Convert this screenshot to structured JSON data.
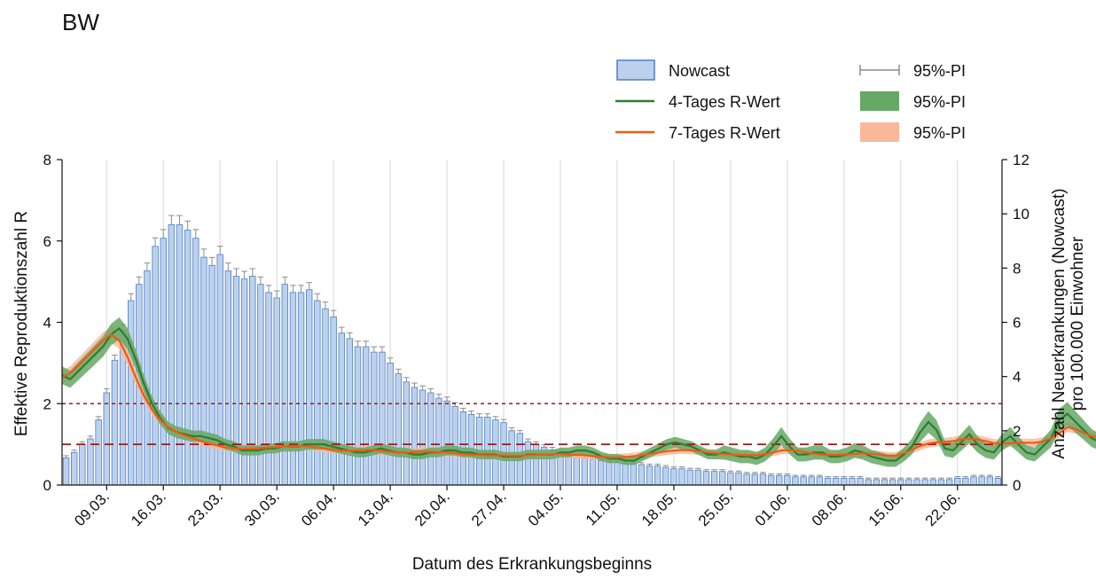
{
  "title": "BW",
  "chart_data": {
    "type": "bar+line",
    "x_tick_labels": [
      "09.03.",
      "16.03.",
      "23.03.",
      "30.03.",
      "06.04.",
      "13.04.",
      "20.04.",
      "27.04.",
      "04.05.",
      "11.05.",
      "18.05.",
      "25.05.",
      "01.06.",
      "08.06.",
      "15.06.",
      "22.06."
    ],
    "first_date": "2020-03-04",
    "last_date": "2020-06-26",
    "xlabel": "Datum des Erkrankungsbeginns",
    "ylabel_left": "Effektive Reproduktionszahl R",
    "ylabel_right_line1": "Anzahl Neuerkrankungen (Nowcast)",
    "ylabel_right_line2": "pro 100.000 Einwohner",
    "ylim_left": [
      0,
      8
    ],
    "yticks_left": [
      "0",
      "2",
      "4",
      "6",
      "8"
    ],
    "ylim_right": [
      0,
      12
    ],
    "yticks_right": [
      "0",
      "2",
      "4",
      "6",
      "8",
      "10",
      "12"
    ],
    "reference_lines_R": [
      1,
      2
    ],
    "grid": "vertical at weekly ticks",
    "legend_position": "top-right",
    "legend": {
      "nowcast": "Nowcast",
      "r4": "4-Tages R-Wert",
      "r7": "7-Tages R-Wert",
      "pi_bars": "95%-PI",
      "pi_r4": "95%-PI",
      "pi_r7": "95%-PI"
    },
    "colors": {
      "bar_fill": "#bcd1ee",
      "bar_stroke": "#4f7fc0",
      "r4_line": "#2e7d32",
      "r4_band": "#66a866",
      "r7_line": "#f05a14",
      "r7_band": "#f9b89a",
      "pi_whisker": "#8c8c8c",
      "ref_line": "#9e1b1b",
      "grid": "#d9d9d9"
    },
    "series": [
      {
        "name": "Nowcast",
        "axis": "right",
        "values": [
          1.0,
          1.2,
          1.5,
          1.7,
          2.4,
          3.4,
          4.6,
          5.7,
          6.8,
          7.4,
          7.9,
          8.8,
          9.1,
          9.6,
          9.6,
          9.4,
          9.1,
          8.4,
          8.1,
          8.5,
          7.9,
          7.7,
          7.6,
          7.7,
          7.4,
          7.1,
          6.9,
          7.4,
          7.1,
          7.1,
          7.2,
          6.8,
          6.5,
          6.2,
          5.6,
          5.4,
          5.1,
          5.1,
          4.9,
          4.9,
          4.5,
          4.1,
          3.8,
          3.6,
          3.5,
          3.4,
          3.2,
          3.1,
          2.9,
          2.7,
          2.6,
          2.5,
          2.5,
          2.4,
          2.3,
          2.0,
          1.9,
          1.6,
          1.5,
          1.4,
          1.3,
          1.2,
          1.1,
          1.0,
          1.0,
          0.95,
          0.9,
          0.85,
          0.85,
          0.8,
          0.8,
          0.75,
          0.7,
          0.7,
          0.65,
          0.6,
          0.6,
          0.55,
          0.55,
          0.5,
          0.5,
          0.5,
          0.45,
          0.45,
          0.4,
          0.4,
          0.4,
          0.35,
          0.35,
          0.35,
          0.3,
          0.3,
          0.3,
          0.3,
          0.25,
          0.25,
          0.25,
          0.25,
          0.25,
          0.2,
          0.2,
          0.2,
          0.2,
          0.2,
          0.2,
          0.2,
          0.2,
          0.2,
          0.2,
          0.2,
          0.25,
          0.25,
          0.3,
          0.3,
          0.3,
          0.25
        ]
      },
      {
        "name": "4-Tages R-Wert",
        "axis": "left",
        "points": [
          [
            0,
            2.7
          ],
          [
            1,
            2.6
          ],
          [
            2,
            2.8
          ],
          [
            3,
            3.0
          ],
          [
            4,
            3.2
          ],
          [
            5,
            3.4
          ],
          [
            6,
            3.7
          ],
          [
            7,
            3.85
          ],
          [
            8,
            3.6
          ],
          [
            9,
            3.1
          ],
          [
            10,
            2.5
          ],
          [
            11,
            2.0
          ],
          [
            12,
            1.65
          ],
          [
            13,
            1.4
          ],
          [
            14,
            1.3
          ],
          [
            15,
            1.25
          ],
          [
            16,
            1.2
          ],
          [
            17,
            1.2
          ],
          [
            18,
            1.15
          ],
          [
            19,
            1.1
          ],
          [
            20,
            1.0
          ],
          [
            21,
            0.95
          ],
          [
            22,
            0.85
          ],
          [
            23,
            0.85
          ],
          [
            24,
            0.85
          ],
          [
            25,
            0.9
          ],
          [
            26,
            0.9
          ],
          [
            27,
            0.95
          ],
          [
            28,
            0.95
          ],
          [
            29,
            0.95
          ],
          [
            30,
            1.0
          ],
          [
            31,
            1.0
          ],
          [
            32,
            1.0
          ],
          [
            33,
            0.95
          ],
          [
            34,
            0.9
          ],
          [
            35,
            0.85
          ],
          [
            36,
            0.8
          ],
          [
            37,
            0.8
          ],
          [
            38,
            0.85
          ],
          [
            39,
            0.9
          ],
          [
            40,
            0.85
          ],
          [
            41,
            0.8
          ],
          [
            42,
            0.8
          ],
          [
            43,
            0.75
          ],
          [
            44,
            0.75
          ],
          [
            45,
            0.8
          ],
          [
            46,
            0.8
          ],
          [
            47,
            0.85
          ],
          [
            48,
            0.85
          ],
          [
            49,
            0.8
          ],
          [
            50,
            0.8
          ],
          [
            51,
            0.75
          ],
          [
            52,
            0.75
          ],
          [
            53,
            0.75
          ],
          [
            54,
            0.7
          ],
          [
            55,
            0.7
          ],
          [
            56,
            0.7
          ],
          [
            57,
            0.75
          ],
          [
            58,
            0.75
          ],
          [
            59,
            0.75
          ],
          [
            60,
            0.75
          ],
          [
            61,
            0.8
          ],
          [
            62,
            0.8
          ],
          [
            63,
            0.85
          ],
          [
            64,
            0.85
          ],
          [
            65,
            0.8
          ],
          [
            66,
            0.7
          ],
          [
            67,
            0.65
          ],
          [
            68,
            0.65
          ],
          [
            69,
            0.6
          ],
          [
            70,
            0.6
          ],
          [
            71,
            0.7
          ],
          [
            72,
            0.8
          ],
          [
            73,
            0.9
          ],
          [
            74,
            1.0
          ],
          [
            75,
            1.05
          ],
          [
            76,
            1.0
          ],
          [
            77,
            0.95
          ],
          [
            78,
            0.85
          ],
          [
            79,
            0.75
          ],
          [
            80,
            0.75
          ],
          [
            81,
            0.8
          ],
          [
            82,
            0.75
          ],
          [
            83,
            0.7
          ],
          [
            84,
            0.7
          ],
          [
            85,
            0.65
          ],
          [
            86,
            0.75
          ],
          [
            87,
            0.95
          ],
          [
            88,
            1.2
          ],
          [
            89,
            0.95
          ],
          [
            90,
            0.75
          ],
          [
            91,
            0.75
          ],
          [
            92,
            0.8
          ],
          [
            93,
            0.8
          ],
          [
            94,
            0.7
          ],
          [
            95,
            0.7
          ],
          [
            96,
            0.75
          ],
          [
            97,
            0.85
          ],
          [
            98,
            0.8
          ],
          [
            99,
            0.7
          ],
          [
            100,
            0.65
          ],
          [
            101,
            0.6
          ],
          [
            102,
            0.6
          ],
          [
            103,
            0.75
          ],
          [
            104,
            0.95
          ],
          [
            105,
            1.3
          ],
          [
            106,
            1.55
          ],
          [
            107,
            1.35
          ],
          [
            108,
            0.9
          ],
          [
            109,
            0.85
          ],
          [
            110,
            1.05
          ],
          [
            111,
            1.25
          ],
          [
            112,
            1.0
          ],
          [
            113,
            0.85
          ],
          [
            114,
            0.8
          ],
          [
            115,
            1.05
          ],
          [
            116,
            1.2
          ],
          [
            117,
            1.0
          ],
          [
            118,
            0.8
          ],
          [
            119,
            0.75
          ],
          [
            120,
            0.95
          ],
          [
            121,
            1.15
          ],
          [
            122,
            1.6
          ],
          [
            123,
            1.75
          ],
          [
            124,
            1.55
          ],
          [
            125,
            1.35
          ],
          [
            126,
            1.15
          ],
          [
            127,
            1.05
          ],
          [
            128,
            1.2
          ],
          [
            129,
            1.3
          ],
          [
            130,
            1.05
          ],
          [
            131,
            0.7
          ]
        ]
      },
      {
        "name": "7-Tages R-Wert",
        "axis": "left",
        "points": [
          [
            0,
            2.65
          ],
          [
            1,
            2.75
          ],
          [
            2,
            2.95
          ],
          [
            3,
            3.15
          ],
          [
            4,
            3.35
          ],
          [
            5,
            3.55
          ],
          [
            6,
            3.7
          ],
          [
            7,
            3.55
          ],
          [
            8,
            3.15
          ],
          [
            9,
            2.65
          ],
          [
            10,
            2.2
          ],
          [
            11,
            1.85
          ],
          [
            12,
            1.6
          ],
          [
            13,
            1.42
          ],
          [
            14,
            1.3
          ],
          [
            15,
            1.22
          ],
          [
            16,
            1.15
          ],
          [
            17,
            1.08
          ],
          [
            18,
            1.02
          ],
          [
            19,
            0.97
          ],
          [
            20,
            0.93
          ],
          [
            21,
            0.9
          ],
          [
            22,
            0.89
          ],
          [
            23,
            0.89
          ],
          [
            24,
            0.9
          ],
          [
            25,
            0.92
          ],
          [
            26,
            0.93
          ],
          [
            27,
            0.95
          ],
          [
            28,
            0.96
          ],
          [
            29,
            0.96
          ],
          [
            30,
            0.95
          ],
          [
            31,
            0.93
          ],
          [
            32,
            0.9
          ],
          [
            33,
            0.87
          ],
          [
            34,
            0.85
          ],
          [
            35,
            0.84
          ],
          [
            36,
            0.85
          ],
          [
            37,
            0.86
          ],
          [
            38,
            0.86
          ],
          [
            39,
            0.84
          ],
          [
            40,
            0.82
          ],
          [
            41,
            0.8
          ],
          [
            42,
            0.8
          ],
          [
            43,
            0.81
          ],
          [
            44,
            0.82
          ],
          [
            45,
            0.82
          ],
          [
            46,
            0.81
          ],
          [
            47,
            0.8
          ],
          [
            48,
            0.78
          ],
          [
            49,
            0.76
          ],
          [
            50,
            0.75
          ],
          [
            51,
            0.74
          ],
          [
            52,
            0.73
          ],
          [
            53,
            0.73
          ],
          [
            54,
            0.73
          ],
          [
            55,
            0.72
          ],
          [
            56,
            0.72
          ],
          [
            57,
            0.73
          ],
          [
            58,
            0.74
          ],
          [
            59,
            0.75
          ],
          [
            60,
            0.76
          ],
          [
            61,
            0.76
          ],
          [
            62,
            0.75
          ],
          [
            63,
            0.74
          ],
          [
            64,
            0.73
          ],
          [
            65,
            0.71
          ],
          [
            66,
            0.69
          ],
          [
            67,
            0.68
          ],
          [
            68,
            0.68
          ],
          [
            69,
            0.69
          ],
          [
            70,
            0.71
          ],
          [
            71,
            0.74
          ],
          [
            72,
            0.77
          ],
          [
            73,
            0.8
          ],
          [
            74,
            0.83
          ],
          [
            75,
            0.85
          ],
          [
            76,
            0.86
          ],
          [
            77,
            0.85
          ],
          [
            78,
            0.83
          ],
          [
            79,
            0.8
          ],
          [
            80,
            0.78
          ],
          [
            81,
            0.76
          ],
          [
            82,
            0.75
          ],
          [
            83,
            0.74
          ],
          [
            84,
            0.73
          ],
          [
            85,
            0.73
          ],
          [
            86,
            0.76
          ],
          [
            87,
            0.8
          ],
          [
            88,
            0.85
          ],
          [
            89,
            0.86
          ],
          [
            90,
            0.84
          ],
          [
            91,
            0.8
          ],
          [
            92,
            0.77
          ],
          [
            93,
            0.75
          ],
          [
            94,
            0.74
          ],
          [
            95,
            0.74
          ],
          [
            96,
            0.75
          ],
          [
            97,
            0.77
          ],
          [
            98,
            0.78
          ],
          [
            99,
            0.77
          ],
          [
            100,
            0.75
          ],
          [
            101,
            0.72
          ],
          [
            102,
            0.72
          ],
          [
            103,
            0.78
          ],
          [
            104,
            0.87
          ],
          [
            105,
            0.96
          ],
          [
            106,
            1.02
          ],
          [
            107,
            1.05
          ],
          [
            108,
            1.06
          ],
          [
            109,
            1.08
          ],
          [
            110,
            1.12
          ],
          [
            111,
            1.14
          ],
          [
            112,
            1.12
          ],
          [
            113,
            1.08
          ],
          [
            114,
            1.03
          ],
          [
            115,
            1.02
          ],
          [
            116,
            1.03
          ],
          [
            117,
            1.04
          ],
          [
            118,
            1.04
          ],
          [
            119,
            1.04
          ],
          [
            120,
            1.07
          ],
          [
            121,
            1.15
          ],
          [
            122,
            1.28
          ],
          [
            123,
            1.42
          ],
          [
            124,
            1.38
          ],
          [
            125,
            1.28
          ],
          [
            126,
            1.2
          ],
          [
            127,
            1.17
          ],
          [
            128,
            1.15
          ],
          [
            129,
            1.12
          ],
          [
            130,
            1.05
          ],
          [
            131,
            0.95
          ]
        ]
      }
    ]
  }
}
